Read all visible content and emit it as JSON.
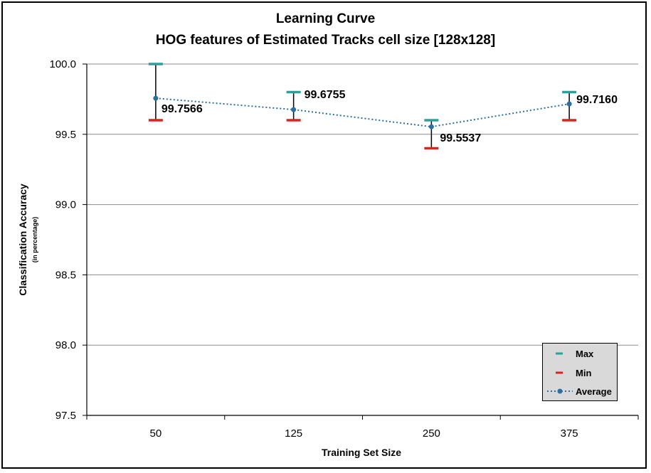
{
  "chart_data": {
    "type": "line",
    "title": "Learning Curve",
    "subtitle": "HOG features of Estimated Tracks cell size [128x128]",
    "xlabel": "Training Set Size",
    "ylabel": "Classification Accuracy",
    "ylabel_sub": "(in percentage)",
    "categories": [
      "50",
      "125",
      "250",
      "375"
    ],
    "ylim": [
      97.5,
      100.0
    ],
    "yticks": [
      "97.5",
      "98.0",
      "98.5",
      "99.0",
      "99.5",
      "100.0"
    ],
    "ytick_values": [
      97.5,
      98.0,
      98.5,
      99.0,
      99.5,
      100.0
    ],
    "grid": true,
    "legend_position": "bottom-right",
    "series": [
      {
        "name": "Max",
        "values": [
          100.0,
          99.8,
          99.6,
          99.8
        ],
        "color": "#2aa198"
      },
      {
        "name": "Min",
        "values": [
          99.6,
          99.6,
          99.4,
          99.6
        ],
        "color": "#e02020"
      },
      {
        "name": "Average",
        "values": [
          99.7566,
          99.6755,
          99.5537,
          99.716
        ],
        "color": "#2a6fa0",
        "labels": [
          "99.7566",
          "99.6755",
          "99.5537",
          "99.7160"
        ]
      }
    ]
  }
}
